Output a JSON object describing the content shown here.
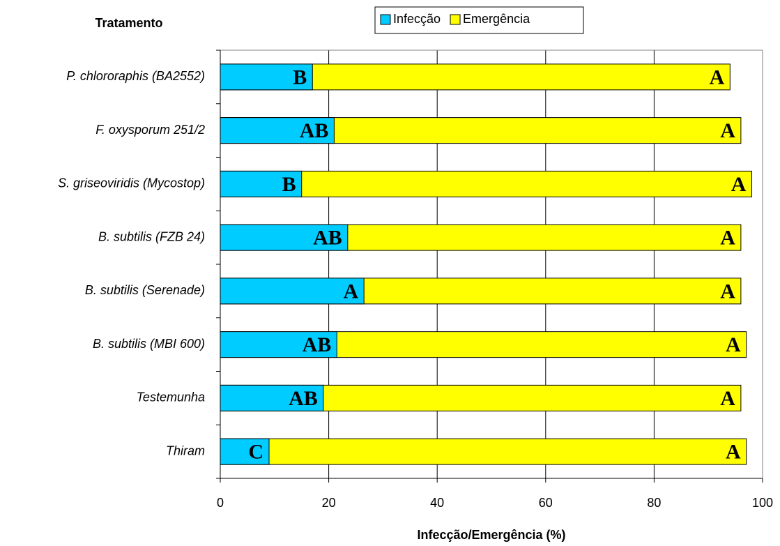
{
  "chart_data": {
    "type": "bar",
    "orientation": "horizontal",
    "overlap": true,
    "y_axis_title": "Tratamento",
    "x_axis_title": "Infecção/Emergência (%)",
    "categories": [
      "P. chlororaphis (BA2552)",
      "F. oxysporum 251/2",
      "S. griseoviridis (Mycostop)",
      "B. subtilis (FZB 24)",
      "B. subtilis (Serenade)",
      "B. subtilis (MBI 600)",
      "Testemunha",
      "Thiram"
    ],
    "series": [
      {
        "name": "Emergência",
        "color": "#ffff00",
        "values": [
          94,
          96,
          98,
          96,
          96,
          97,
          96,
          97
        ],
        "letters": [
          "A",
          "A",
          "A",
          "A",
          "A",
          "A",
          "A",
          "A"
        ]
      },
      {
        "name": "Infecção",
        "color": "#00ccff",
        "values": [
          17,
          21,
          15,
          23.5,
          26.5,
          21.5,
          19,
          9
        ],
        "letters": [
          "B",
          "AB",
          "B",
          "AB",
          "A",
          "AB",
          "AB",
          "C"
        ]
      }
    ],
    "legend_order": [
      1,
      0
    ],
    "legend": "top",
    "xlim": [
      0,
      100
    ],
    "xticks": [
      0,
      20,
      40,
      60,
      80,
      100
    ],
    "grid": true
  }
}
